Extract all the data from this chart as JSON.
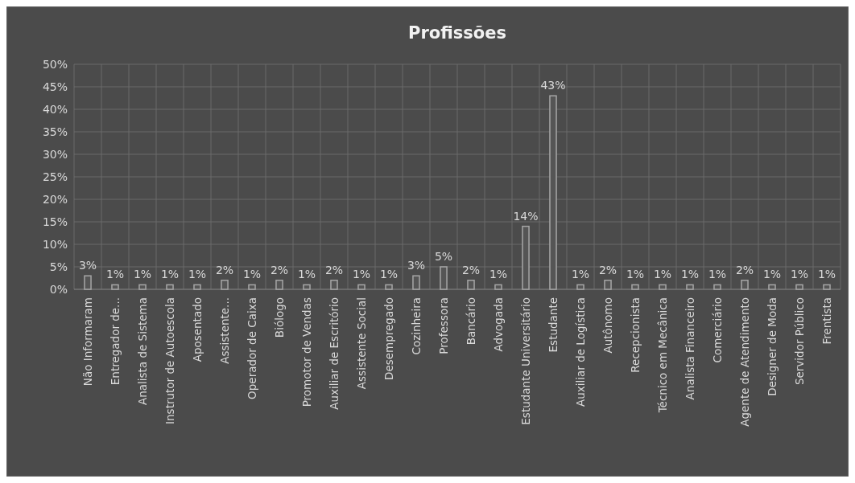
{
  "chart_data": {
    "type": "bar",
    "title": "Profissões",
    "categories": [
      "Não Informaram",
      "Entregador de...",
      "Analista de Sistema",
      "Instrutor de Autoescola",
      "Aposentado",
      "Assistente...",
      "Operador de Caixa",
      "Biólogo",
      "Promotor de Vendas",
      "Auxiliar de Escritório",
      "Assistente Social",
      "Desempregado",
      "Cozinheira",
      "Professora",
      "Bancário",
      "Advogada",
      "Estudante Universitário",
      "Estudante",
      "Auxiliar de Logística",
      "Autônomo",
      "Recepcionista",
      "Técnico em Mecânica",
      "Analista Financeiro",
      "Comerciário",
      "Agente de Atendimento",
      "Designer de Moda",
      "Servidor Público",
      "Frentista"
    ],
    "values": [
      3,
      1,
      1,
      1,
      1,
      2,
      1,
      2,
      1,
      2,
      1,
      1,
      3,
      5,
      2,
      1,
      14,
      43,
      1,
      2,
      1,
      1,
      1,
      1,
      2,
      1,
      1,
      1
    ],
    "value_labels": [
      "3%",
      "1%",
      "1%",
      "1%",
      "1%",
      "2%",
      "1%",
      "2%",
      "1%",
      "2%",
      "1%",
      "1%",
      "3%",
      "5%",
      "2%",
      "1%",
      "14%",
      "43%",
      "1%",
      "2%",
      "1%",
      "1%",
      "1%",
      "1%",
      "2%",
      "1%",
      "1%",
      "1%"
    ],
    "color": "#a6a6a6",
    "ylim": [
      0,
      50
    ],
    "yticks": [
      {
        "value": 0,
        "label": "0%"
      },
      {
        "value": 5,
        "label": "5%"
      },
      {
        "value": 10,
        "label": "10%"
      },
      {
        "value": 15,
        "label": "15%"
      },
      {
        "value": 20,
        "label": "20%"
      },
      {
        "value": 25,
        "label": "25%"
      },
      {
        "value": 30,
        "label": "30%"
      },
      {
        "value": 35,
        "label": "35%"
      },
      {
        "value": 40,
        "label": "40%"
      },
      {
        "value": 45,
        "label": "45%"
      },
      {
        "value": 50,
        "label": "50%"
      }
    ],
    "grid": true
  }
}
